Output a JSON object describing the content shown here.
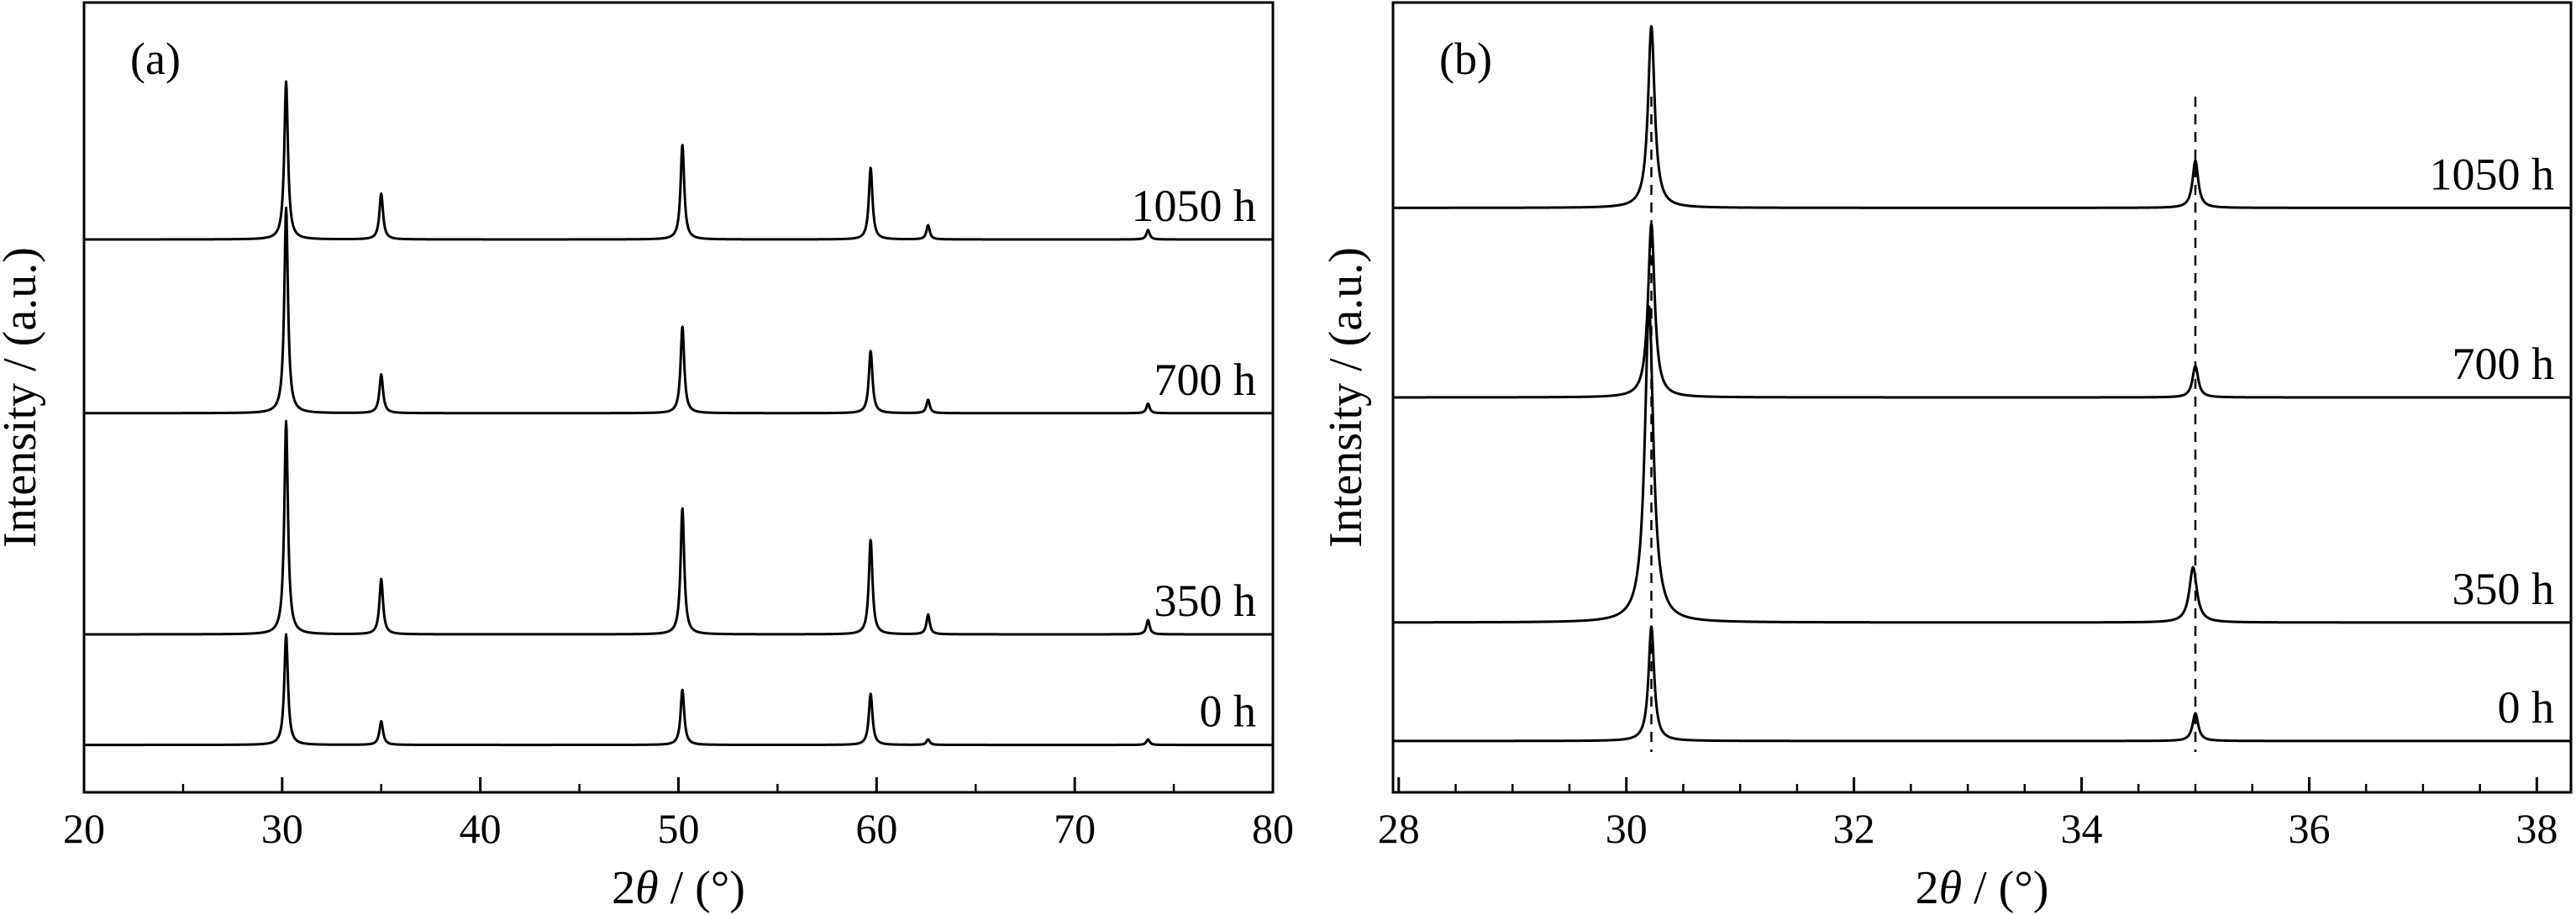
{
  "chart_data": [
    {
      "type": "line",
      "panel_label": "(a)",
      "xlabel_prefix": "2",
      "xlabel_symbol": "θ",
      "xlabel_suffix": " / (°)",
      "ylabel": "Intensity / (a.u.)",
      "xlim": [
        20,
        80
      ],
      "xticks": [
        20,
        30,
        40,
        50,
        60,
        70,
        80
      ],
      "xminor": [
        25,
        35,
        45,
        55,
        65,
        75
      ],
      "ylim": [
        0,
        1
      ],
      "yticks_shown": false,
      "grid": false,
      "series": [
        {
          "name": "0 h",
          "baseline": 0.06,
          "peaks": [
            {
              "x": 30.2,
              "h": 0.14,
              "w": 0.11
            },
            {
              "x": 35.0,
              "h": 0.03,
              "w": 0.11
            },
            {
              "x": 50.2,
              "h": 0.07,
              "w": 0.11
            },
            {
              "x": 59.7,
              "h": 0.065,
              "w": 0.11
            },
            {
              "x": 62.6,
              "h": 0.007,
              "w": 0.1
            },
            {
              "x": 73.7,
              "h": 0.007,
              "w": 0.1
            }
          ]
        },
        {
          "name": "350 h",
          "baseline": 0.2,
          "peaks": [
            {
              "x": 30.2,
              "h": 0.27,
              "w": 0.11
            },
            {
              "x": 35.0,
              "h": 0.07,
              "w": 0.11
            },
            {
              "x": 50.2,
              "h": 0.16,
              "w": 0.11
            },
            {
              "x": 59.7,
              "h": 0.12,
              "w": 0.11
            },
            {
              "x": 62.6,
              "h": 0.025,
              "w": 0.1
            },
            {
              "x": 73.7,
              "h": 0.018,
              "w": 0.1
            }
          ]
        },
        {
          "name": "700 h",
          "baseline": 0.48,
          "peaks": [
            {
              "x": 30.2,
              "h": 0.26,
              "w": 0.11
            },
            {
              "x": 35.0,
              "h": 0.049,
              "w": 0.11
            },
            {
              "x": 50.2,
              "h": 0.11,
              "w": 0.11
            },
            {
              "x": 59.7,
              "h": 0.079,
              "w": 0.11
            },
            {
              "x": 62.6,
              "h": 0.017,
              "w": 0.1
            },
            {
              "x": 73.7,
              "h": 0.012,
              "w": 0.1
            }
          ]
        },
        {
          "name": "1050 h",
          "baseline": 0.7,
          "peaks": [
            {
              "x": 30.2,
              "h": 0.2,
              "w": 0.11
            },
            {
              "x": 35.0,
              "h": 0.058,
              "w": 0.11
            },
            {
              "x": 50.2,
              "h": 0.12,
              "w": 0.11
            },
            {
              "x": 59.7,
              "h": 0.091,
              "w": 0.11
            },
            {
              "x": 62.6,
              "h": 0.018,
              "w": 0.1
            },
            {
              "x": 73.7,
              "h": 0.012,
              "w": 0.1
            }
          ]
        }
      ]
    },
    {
      "type": "line",
      "panel_label": "(b)",
      "xlabel_prefix": "2",
      "xlabel_symbol": "θ",
      "xlabel_suffix": " / (°)",
      "ylabel": "Intensity / (a.u.)",
      "xlim": [
        27.95,
        38.3
      ],
      "xticks": [
        28,
        30,
        32,
        34,
        36,
        38
      ],
      "xminor": [
        28.5,
        29,
        29.5,
        30.5,
        31,
        31.5,
        32.5,
        33,
        33.5,
        34.5,
        35,
        35.5,
        36.5,
        37,
        37.5
      ],
      "ylim": [
        0,
        1
      ],
      "yticks_shown": false,
      "grid": false,
      "reference_lines": [
        30.22,
        35.0
      ],
      "series": [
        {
          "name": "0 h",
          "baseline": 0.065,
          "peaks": [
            {
              "x": 30.22,
              "h": 0.145,
              "w": 0.03
            },
            {
              "x": 35.0,
              "h": 0.035,
              "w": 0.03
            }
          ]
        },
        {
          "name": "350 h",
          "baseline": 0.215,
          "peaks": [
            {
              "x": 30.2,
              "h": 0.4,
              "w": 0.045
            },
            {
              "x": 34.98,
              "h": 0.07,
              "w": 0.04
            }
          ]
        },
        {
          "name": "700 h",
          "baseline": 0.5,
          "peaks": [
            {
              "x": 30.22,
              "h": 0.22,
              "w": 0.035
            },
            {
              "x": 35.0,
              "h": 0.04,
              "w": 0.03
            }
          ]
        },
        {
          "name": "1050 h",
          "baseline": 0.74,
          "peaks": [
            {
              "x": 30.22,
              "h": 0.23,
              "w": 0.035
            },
            {
              "x": 35.0,
              "h": 0.06,
              "w": 0.03
            }
          ]
        }
      ]
    }
  ]
}
